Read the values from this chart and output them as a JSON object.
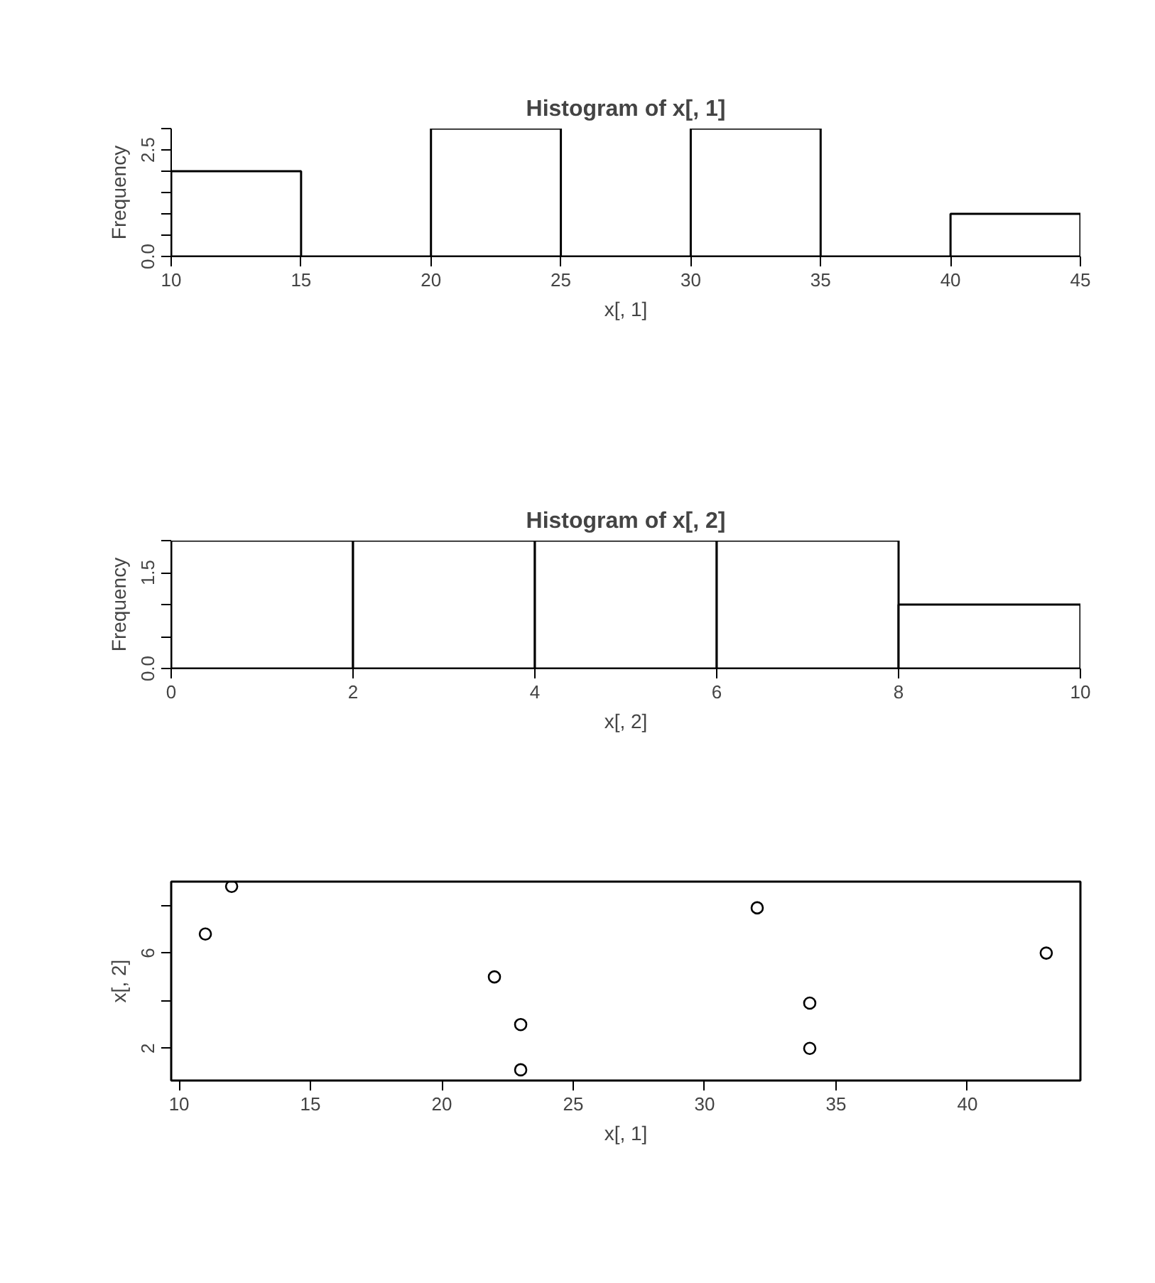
{
  "chart_data": [
    {
      "type": "histogram",
      "title": "Histogram of x[, 1]",
      "xlabel": "x[, 1]",
      "ylabel": "Frequency",
      "color": "#000000",
      "bins": [
        10,
        15,
        20,
        25,
        30,
        35,
        40,
        45
      ],
      "values": [
        2,
        0,
        3,
        0,
        3,
        0,
        1
      ],
      "xlim": [
        10,
        45
      ],
      "ylim": [
        0,
        3
      ],
      "xticks": [
        10,
        15,
        20,
        25,
        30,
        35,
        40,
        45
      ],
      "yticks": [
        {
          "value": 0,
          "label": "0.0"
        },
        {
          "value": 0.5,
          "label": null
        },
        {
          "value": 1,
          "label": null
        },
        {
          "value": 1.5,
          "label": null
        },
        {
          "value": 2,
          "label": null
        },
        {
          "value": 2.5,
          "label": "2.5"
        },
        {
          "value": 3,
          "label": null
        }
      ]
    },
    {
      "type": "histogram",
      "title": "Histogram of x[, 2]",
      "xlabel": "x[, 2]",
      "ylabel": "Frequency",
      "color": "#000000",
      "bins": [
        0,
        2,
        4,
        6,
        8,
        10
      ],
      "values": [
        2,
        2,
        2,
        2,
        1
      ],
      "xlim": [
        0,
        10
      ],
      "ylim": [
        0,
        2
      ],
      "xticks": [
        0,
        2,
        4,
        6,
        8,
        10
      ],
      "yticks": [
        {
          "value": 0,
          "label": "0.0"
        },
        {
          "value": 0.5,
          "label": null
        },
        {
          "value": 1,
          "label": null
        },
        {
          "value": 1.5,
          "label": "1.5"
        },
        {
          "value": 2,
          "label": null
        }
      ]
    },
    {
      "type": "scatter",
      "xlabel": "x[, 1]",
      "ylabel": "x[, 2]",
      "marker": "circle",
      "x": [
        11,
        12,
        22,
        23,
        23,
        32,
        34,
        34,
        43
      ],
      "series": [
        {
          "color": "#000000",
          "values": [
            6.8,
            8.8,
            5.0,
            3.0,
            1.1,
            7.9,
            3.9,
            2.0,
            6.0
          ]
        }
      ],
      "xlim": [
        9.7,
        44.3
      ],
      "ylim": [
        0.65,
        9.0
      ],
      "xticks": [
        10,
        15,
        20,
        25,
        30,
        35,
        40
      ],
      "yticks": [
        2,
        {
          "value": 4,
          "label": null
        },
        6,
        {
          "value": 8,
          "label": null
        }
      ]
    }
  ]
}
